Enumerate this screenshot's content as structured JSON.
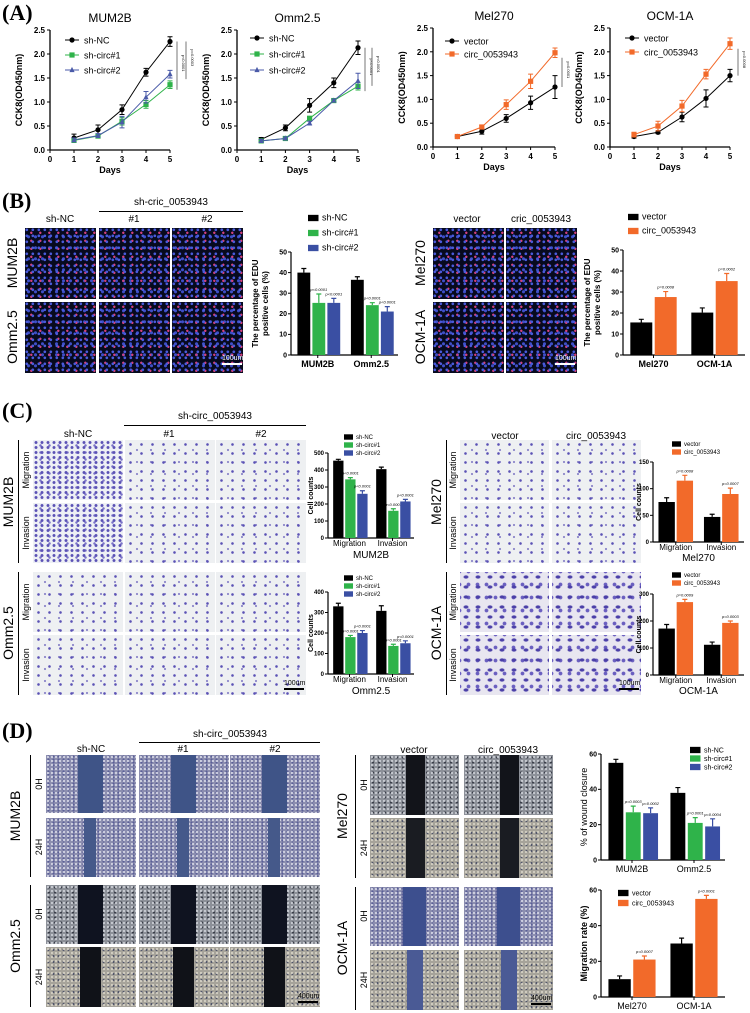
{
  "panels": {
    "A": "(A)",
    "B": "(B)",
    "C": "(C)",
    "D": "(D)"
  },
  "B": {
    "left": {
      "group_header": "sh-cric_0053943",
      "col_headers": [
        "sh-NC",
        "#1",
        "#2"
      ],
      "rows": [
        "MUM2B",
        "Omm2.5"
      ],
      "scale": "100um"
    },
    "right": {
      "col_headers": [
        "vector",
        "cric_0053943"
      ],
      "rows": [
        "Mel270",
        "OCM-1A"
      ],
      "scale": "100um"
    }
  },
  "C": {
    "left": {
      "group_header": "sh-circ_0053943",
      "col_headers": [
        "sh-NC",
        "#1",
        "#2"
      ],
      "cell_lines": [
        "MUM2B",
        "Omm2.5"
      ],
      "row_types": [
        "Migration",
        "Invasion"
      ],
      "scale": "100um"
    },
    "right": {
      "col_headers": [
        "vector",
        "circ_0053943"
      ],
      "cell_lines": [
        "Mel270",
        "OCM-1A"
      ],
      "row_types": [
        "Migration",
        "Invasion"
      ],
      "scale": "100um"
    }
  },
  "D": {
    "left": {
      "group_header": "sh-circ_0053943",
      "col_headers": [
        "sh-NC",
        "#1",
        "#2"
      ],
      "cell_lines": [
        "MUM2B",
        "Omm2.5"
      ],
      "row_types": [
        "0H",
        "24H"
      ],
      "scale": "400um"
    },
    "right": {
      "col_headers": [
        "vector",
        "circ_0053943"
      ],
      "cell_lines": [
        "Mel270",
        "OCM-1A"
      ],
      "row_types": [
        "0H",
        "24H"
      ],
      "scale": "400um"
    }
  },
  "colors": {
    "black": "#000000",
    "green": "#2fb34a",
    "blue": "#3a4fa3",
    "orange": "#f26a2a"
  },
  "chart_data": [
    {
      "type": "line",
      "title": "MUM2B",
      "xlabel": "Days",
      "ylabel": "CCK8(OD450nm)",
      "x": [
        1,
        2,
        3,
        4,
        5
      ],
      "xlim": [
        0,
        5
      ],
      "ylim": [
        0,
        2.5
      ],
      "yticks": [
        0,
        0.5,
        1.0,
        1.5,
        2.0,
        2.5
      ],
      "legend": "top-left",
      "series": [
        {
          "name": "sh-NC",
          "color": "#000000",
          "marker": "circle",
          "values": [
            0.25,
            0.42,
            0.84,
            1.62,
            2.26
          ],
          "errors": [
            0.08,
            0.1,
            0.1,
            0.08,
            0.1
          ]
        },
        {
          "name": "sh-circ#1",
          "color": "#2fb34a",
          "marker": "square",
          "values": [
            0.2,
            0.29,
            0.6,
            0.95,
            1.36
          ],
          "errors": [
            0.04,
            0.04,
            0.08,
            0.08,
            0.08
          ]
        },
        {
          "name": "sh-circ#2",
          "color": "#4a5aa8",
          "marker": "triangle",
          "values": [
            0.21,
            0.3,
            0.58,
            1.1,
            1.58
          ],
          "errors": [
            0.04,
            0.04,
            0.12,
            0.12,
            0.08
          ]
        }
      ],
      "annotations": [
        "p<0.0001",
        "p=0.0003"
      ]
    },
    {
      "type": "line",
      "title": "Omm2.5",
      "xlabel": "Days",
      "ylabel": "CCK8(OD450nm)",
      "x": [
        1,
        2,
        3,
        4,
        5
      ],
      "xlim": [
        0,
        5
      ],
      "ylim": [
        0,
        2.5
      ],
      "yticks": [
        0,
        0.5,
        1.0,
        1.5,
        2.0,
        2.5
      ],
      "legend": "top-left",
      "series": [
        {
          "name": "sh-NC",
          "color": "#000000",
          "marker": "circle",
          "values": [
            0.22,
            0.46,
            0.93,
            1.4,
            2.13
          ],
          "errors": [
            0.04,
            0.06,
            0.14,
            0.1,
            0.14
          ]
        },
        {
          "name": "sh-circ#1",
          "color": "#2fb34a",
          "marker": "square",
          "values": [
            0.19,
            0.24,
            0.66,
            1.03,
            1.33
          ],
          "errors": [
            0.03,
            0.03,
            0.04,
            0.03,
            0.08
          ]
        },
        {
          "name": "sh-circ#2",
          "color": "#4a5aa8",
          "marker": "triangle",
          "values": [
            0.19,
            0.24,
            0.56,
            1.03,
            1.44
          ],
          "errors": [
            0.03,
            0.03,
            0.04,
            0.03,
            0.16
          ]
        }
      ],
      "annotations": [
        "p<0.0001",
        "p<0.0001"
      ]
    },
    {
      "type": "line",
      "title": "Mel270",
      "xlabel": "Days",
      "ylabel": "CCK8(OD450nm)",
      "x": [
        1,
        2,
        3,
        4,
        5
      ],
      "xlim": [
        0,
        5
      ],
      "ylim": [
        0,
        2.5
      ],
      "yticks": [
        0,
        0.5,
        1.0,
        1.5,
        2.0,
        2.5
      ],
      "legend": "top-left",
      "series": [
        {
          "name": "vector",
          "color": "#000000",
          "marker": "circle",
          "values": [
            0.22,
            0.33,
            0.6,
            0.93,
            1.26
          ],
          "errors": [
            0.03,
            0.06,
            0.08,
            0.14,
            0.24
          ]
        },
        {
          "name": "circ_0053943",
          "color": "#f26a2a",
          "marker": "square",
          "values": [
            0.22,
            0.42,
            0.89,
            1.38,
            1.98
          ],
          "errors": [
            0.03,
            0.04,
            0.1,
            0.15,
            0.1
          ]
        }
      ],
      "annotations": [
        "p=0.0001"
      ]
    },
    {
      "type": "line",
      "title": "OCM-1A",
      "xlabel": "Days",
      "ylabel": "CCK8(OD450nm)",
      "x": [
        1,
        2,
        3,
        4,
        5
      ],
      "xlim": [
        0,
        5
      ],
      "ylim": [
        0,
        2.5
      ],
      "yticks": [
        0,
        0.5,
        1.0,
        1.5,
        2.0,
        2.5
      ],
      "legend": "top-left",
      "series": [
        {
          "name": "vector",
          "color": "#000000",
          "marker": "circle",
          "values": [
            0.22,
            0.31,
            0.63,
            1.02,
            1.5
          ],
          "errors": [
            0.03,
            0.03,
            0.1,
            0.18,
            0.13
          ]
        },
        {
          "name": "circ_0053943",
          "color": "#f26a2a",
          "marker": "square",
          "values": [
            0.26,
            0.44,
            0.86,
            1.53,
            2.17
          ],
          "errors": [
            0.05,
            0.1,
            0.12,
            0.1,
            0.12
          ]
        }
      ],
      "annotations": [
        "p=0.0008"
      ]
    },
    {
      "type": "bar",
      "ylabel": [
        "The percentage of EDU",
        "positive cells (%)"
      ],
      "categories": [
        "MUM2B",
        "Omm2.5"
      ],
      "ylim": [
        0,
        50
      ],
      "yticks": [
        0,
        10,
        20,
        30,
        40,
        50
      ],
      "legend": "top",
      "series": [
        {
          "name": "sh-NC",
          "color": "#000000",
          "values": [
            40,
            36.5
          ],
          "errors": [
            2,
            1.5
          ],
          "pvalues": [
            null,
            null
          ]
        },
        {
          "name": "sh-circ#1",
          "color": "#2fb34a",
          "values": [
            25.3,
            24.2
          ],
          "errors": [
            4.3,
            1.2
          ],
          "pvalues": [
            "p<0.0001",
            "p<0.0001"
          ]
        },
        {
          "name": "sh-circ#2",
          "color": "#3a4fa3",
          "values": [
            25.3,
            21.1
          ],
          "errors": [
            2.2,
            2.4
          ],
          "pvalues": [
            "p<0.0001",
            "p<0.0001"
          ]
        }
      ]
    },
    {
      "type": "bar",
      "ylabel": [
        "The percentage of EDU",
        "positive cells (%)"
      ],
      "categories": [
        "Mel270",
        "OCM-1A"
      ],
      "ylim": [
        0,
        50
      ],
      "yticks": [
        0,
        10,
        20,
        30,
        40,
        50
      ],
      "legend": "top",
      "series": [
        {
          "name": "vector",
          "color": "#000000",
          "values": [
            15.5,
            20.2
          ],
          "errors": [
            1.5,
            2.2
          ],
          "pvalues": [
            null,
            null
          ]
        },
        {
          "name": "circ_0053943",
          "color": "#f26a2a",
          "values": [
            27.6,
            35.2
          ],
          "errors": [
            2.6,
            3.6
          ],
          "pvalues": [
            "p=0.0008",
            "p=0.0002"
          ]
        }
      ]
    },
    {
      "type": "bar",
      "title": "MUM2B",
      "ylabel": [
        "Cell counts"
      ],
      "categories": [
        "Migration",
        "Invasion"
      ],
      "ylim": [
        0,
        500
      ],
      "yticks": [
        0,
        100,
        200,
        300,
        400,
        500
      ],
      "legend": "top",
      "series": [
        {
          "name": "sh-NC",
          "color": "#000000",
          "values": [
            455,
            405
          ],
          "errors": [
            8,
            12
          ],
          "pvalues": [
            null,
            null
          ]
        },
        {
          "name": "sh-circ#1",
          "color": "#2fb34a",
          "values": [
            345,
            160
          ],
          "errors": [
            10,
            12
          ],
          "pvalues": [
            "p<0.0001",
            "p<0.0001"
          ]
        },
        {
          "name": "sh-circ#2",
          "color": "#3a4fa3",
          "values": [
            260,
            215
          ],
          "errors": [
            18,
            12
          ],
          "pvalues": [
            "p<0.0001",
            "p<0.0001"
          ]
        }
      ]
    },
    {
      "type": "bar",
      "title": "Omm2.5",
      "ylabel": [
        "Cell counts"
      ],
      "categories": [
        "Migration",
        "Invasion"
      ],
      "ylim": [
        0,
        400
      ],
      "yticks": [
        0,
        100,
        200,
        300,
        400
      ],
      "legend": "top",
      "series": [
        {
          "name": "sh-NC",
          "color": "#000000",
          "values": [
            330,
            308
          ],
          "errors": [
            15,
            25
          ],
          "pvalues": [
            null,
            null
          ]
        },
        {
          "name": "sh-circ#1",
          "color": "#2fb34a",
          "values": [
            180,
            137
          ],
          "errors": [
            8,
            8
          ],
          "pvalues": [
            "p=0.0001",
            "p=0.0001"
          ]
        },
        {
          "name": "sh-circ#2",
          "color": "#3a4fa3",
          "values": [
            200,
            150
          ],
          "errors": [
            12,
            12
          ],
          "pvalues": [
            "p<0.0001",
            "p<0.0001"
          ]
        }
      ]
    },
    {
      "type": "bar",
      "title": "Mel270",
      "ylabel": [
        "Cell counts"
      ],
      "categories": [
        "Migration",
        "Invasion"
      ],
      "ylim": [
        0,
        150
      ],
      "yticks": [
        0,
        50,
        100,
        150
      ],
      "legend": "top",
      "series": [
        {
          "name": "vector",
          "color": "#000000",
          "values": [
            75,
            47
          ],
          "errors": [
            8,
            5
          ],
          "pvalues": [
            null,
            null
          ]
        },
        {
          "name": "circ_0053943",
          "color": "#f26a2a",
          "values": [
            115,
            90
          ],
          "errors": [
            10,
            11
          ],
          "pvalues": [
            "p=0.0008",
            "p=0.0007"
          ]
        }
      ]
    },
    {
      "type": "bar",
      "title": "OCM-1A",
      "ylabel": [
        "Cell counts"
      ],
      "categories": [
        "Migration",
        "Invasion"
      ],
      "ylim": [
        0,
        300
      ],
      "yticks": [
        0,
        100,
        200,
        300
      ],
      "legend": "top",
      "series": [
        {
          "name": "vector",
          "color": "#000000",
          "values": [
            172,
            112
          ],
          "errors": [
            15,
            10
          ],
          "pvalues": [
            null,
            null
          ]
        },
        {
          "name": "circ_0053943",
          "color": "#f26a2a",
          "values": [
            270,
            193
          ],
          "errors": [
            10,
            7
          ],
          "pvalues": [
            "p=0.0009",
            "p=0.0003"
          ]
        }
      ]
    },
    {
      "type": "bar",
      "ylabel": [
        "% of wound closure"
      ],
      "categories": [
        "MUM2B",
        "Omm2.5"
      ],
      "ylim": [
        0,
        60
      ],
      "yticks": [
        0,
        20,
        40,
        60
      ],
      "legend": "top-right",
      "series": [
        {
          "name": "sh-NC",
          "color": "#000000",
          "values": [
            55,
            38
          ],
          "errors": [
            2,
            3
          ],
          "pvalues": [
            null,
            null
          ]
        },
        {
          "name": "sh-circ#1",
          "color": "#2fb34a",
          "values": [
            27,
            21
          ],
          "errors": [
            3.5,
            3
          ],
          "pvalues": [
            "p=0.0003",
            "p=0.0001"
          ]
        },
        {
          "name": "sh-circ#2",
          "color": "#3a4fa3",
          "values": [
            26.5,
            19
          ],
          "errors": [
            3,
            4.3
          ],
          "pvalues": [
            "p=0.0002",
            "p=0.0004"
          ]
        }
      ]
    },
    {
      "type": "bar",
      "ylabel": [
        "Migration rate (%)"
      ],
      "categories": [
        "Mel270",
        "OCM-1A"
      ],
      "ylim": [
        0,
        60
      ],
      "yticks": [
        0,
        20,
        40,
        60
      ],
      "legend": "top-left",
      "series": [
        {
          "name": "vector",
          "color": "#000000",
          "values": [
            10,
            30
          ],
          "errors": [
            1.8,
            3
          ],
          "pvalues": [
            null,
            null
          ]
        },
        {
          "name": "circ_0053943",
          "color": "#f26a2a",
          "values": [
            21,
            55
          ],
          "errors": [
            2,
            2
          ],
          "pvalues": [
            "p=0.0007",
            "p<0.0001"
          ]
        }
      ]
    }
  ]
}
